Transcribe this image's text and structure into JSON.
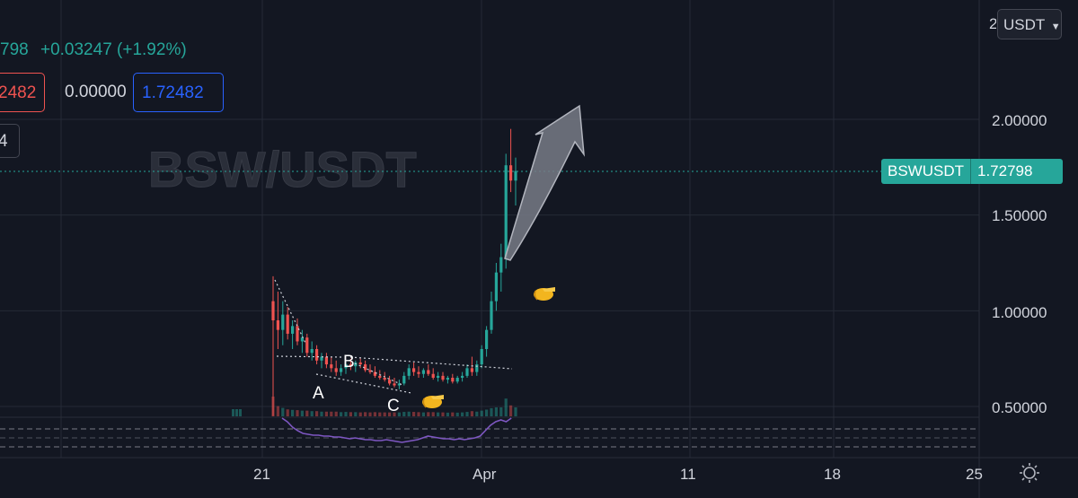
{
  "legend": {
    "price_partial": "798",
    "change": "+0.03247 (+1.92%)",
    "low_partial": "2482",
    "mid_value": "0.00000",
    "right_value": "1.72482",
    "row3_partial": "4"
  },
  "currency_selector": {
    "label": "USDT",
    "clipped_digit": "2"
  },
  "watermark": "BSW/USDT",
  "price_tag": {
    "symbol": "BSWUSDT",
    "value": "1.72798"
  },
  "price_axis_labels": [
    "2.00000",
    "1.50000",
    "1.00000",
    "0.50000"
  ],
  "time_axis_labels": [
    "21",
    "Apr",
    "11",
    "18",
    "25"
  ],
  "annotations": [
    "A",
    "B",
    "C"
  ],
  "colors": {
    "up": "#26a69a",
    "down": "#ef5350",
    "rsi": "#7e57c2",
    "tag": "#26a69a",
    "blue_box": "#2962ff"
  },
  "icons": [
    "settings-gear-icon",
    "pointing-hand-icon",
    "arrow-up-icon",
    "chevron-down-icon"
  ],
  "chart_data": {
    "type": "candlestick",
    "title": "BSW/USDT",
    "y_axis": {
      "ticks": [
        0.5,
        1.0,
        1.5,
        2.0
      ],
      "ylim": [
        0.45,
        2.2
      ]
    },
    "x_axis": {
      "ticks": [
        "21",
        "Apr",
        "11",
        "18",
        "25"
      ]
    },
    "last_price": 1.72798,
    "candles": [
      [
        1.05,
        1.18,
        0.45,
        0.95
      ],
      [
        0.95,
        1.1,
        0.8,
        0.9
      ],
      [
        0.9,
        1.05,
        0.82,
        0.98
      ],
      [
        0.98,
        1.02,
        0.85,
        0.88
      ],
      [
        0.88,
        0.95,
        0.8,
        0.92
      ],
      [
        0.92,
        0.96,
        0.82,
        0.84
      ],
      [
        0.84,
        0.9,
        0.78,
        0.86
      ],
      [
        0.86,
        0.88,
        0.76,
        0.78
      ],
      [
        0.78,
        0.84,
        0.74,
        0.8
      ],
      [
        0.8,
        0.82,
        0.72,
        0.74
      ],
      [
        0.74,
        0.78,
        0.7,
        0.76
      ],
      [
        0.76,
        0.78,
        0.7,
        0.72
      ],
      [
        0.72,
        0.76,
        0.68,
        0.7
      ],
      [
        0.7,
        0.74,
        0.66,
        0.68
      ],
      [
        0.68,
        0.72,
        0.66,
        0.7
      ],
      [
        0.7,
        0.74,
        0.67,
        0.72
      ],
      [
        0.72,
        0.75,
        0.69,
        0.71
      ],
      [
        0.71,
        0.74,
        0.68,
        0.73
      ],
      [
        0.73,
        0.75,
        0.7,
        0.72
      ],
      [
        0.72,
        0.74,
        0.68,
        0.69
      ],
      [
        0.69,
        0.72,
        0.67,
        0.68
      ],
      [
        0.68,
        0.71,
        0.65,
        0.66
      ],
      [
        0.66,
        0.69,
        0.64,
        0.65
      ],
      [
        0.65,
        0.68,
        0.63,
        0.64
      ],
      [
        0.64,
        0.66,
        0.61,
        0.62
      ],
      [
        0.62,
        0.65,
        0.6,
        0.61
      ],
      [
        0.61,
        0.64,
        0.59,
        0.62
      ],
      [
        0.62,
        0.68,
        0.61,
        0.66
      ],
      [
        0.66,
        0.72,
        0.64,
        0.7
      ],
      [
        0.7,
        0.73,
        0.66,
        0.68
      ],
      [
        0.68,
        0.71,
        0.65,
        0.67
      ],
      [
        0.67,
        0.7,
        0.65,
        0.69
      ],
      [
        0.69,
        0.72,
        0.66,
        0.67
      ],
      [
        0.67,
        0.7,
        0.64,
        0.65
      ],
      [
        0.65,
        0.68,
        0.63,
        0.66
      ],
      [
        0.66,
        0.68,
        0.63,
        0.64
      ],
      [
        0.64,
        0.66,
        0.62,
        0.65
      ],
      [
        0.65,
        0.67,
        0.62,
        0.63
      ],
      [
        0.63,
        0.66,
        0.62,
        0.65
      ],
      [
        0.65,
        0.68,
        0.63,
        0.66
      ],
      [
        0.66,
        0.72,
        0.65,
        0.7
      ],
      [
        0.7,
        0.76,
        0.66,
        0.68
      ],
      [
        0.68,
        0.74,
        0.66,
        0.72
      ],
      [
        0.72,
        0.82,
        0.7,
        0.8
      ],
      [
        0.8,
        0.92,
        0.76,
        0.9
      ],
      [
        0.9,
        1.1,
        0.88,
        1.05
      ],
      [
        1.05,
        1.25,
        1.0,
        1.2
      ],
      [
        1.2,
        1.35,
        1.1,
        1.28
      ],
      [
        1.28,
        1.82,
        1.22,
        1.76
      ],
      [
        1.76,
        1.95,
        1.62,
        1.68
      ],
      [
        1.68,
        1.8,
        1.55,
        1.73
      ]
    ],
    "annotation_labels": [
      "A",
      "B",
      "C"
    ]
  }
}
